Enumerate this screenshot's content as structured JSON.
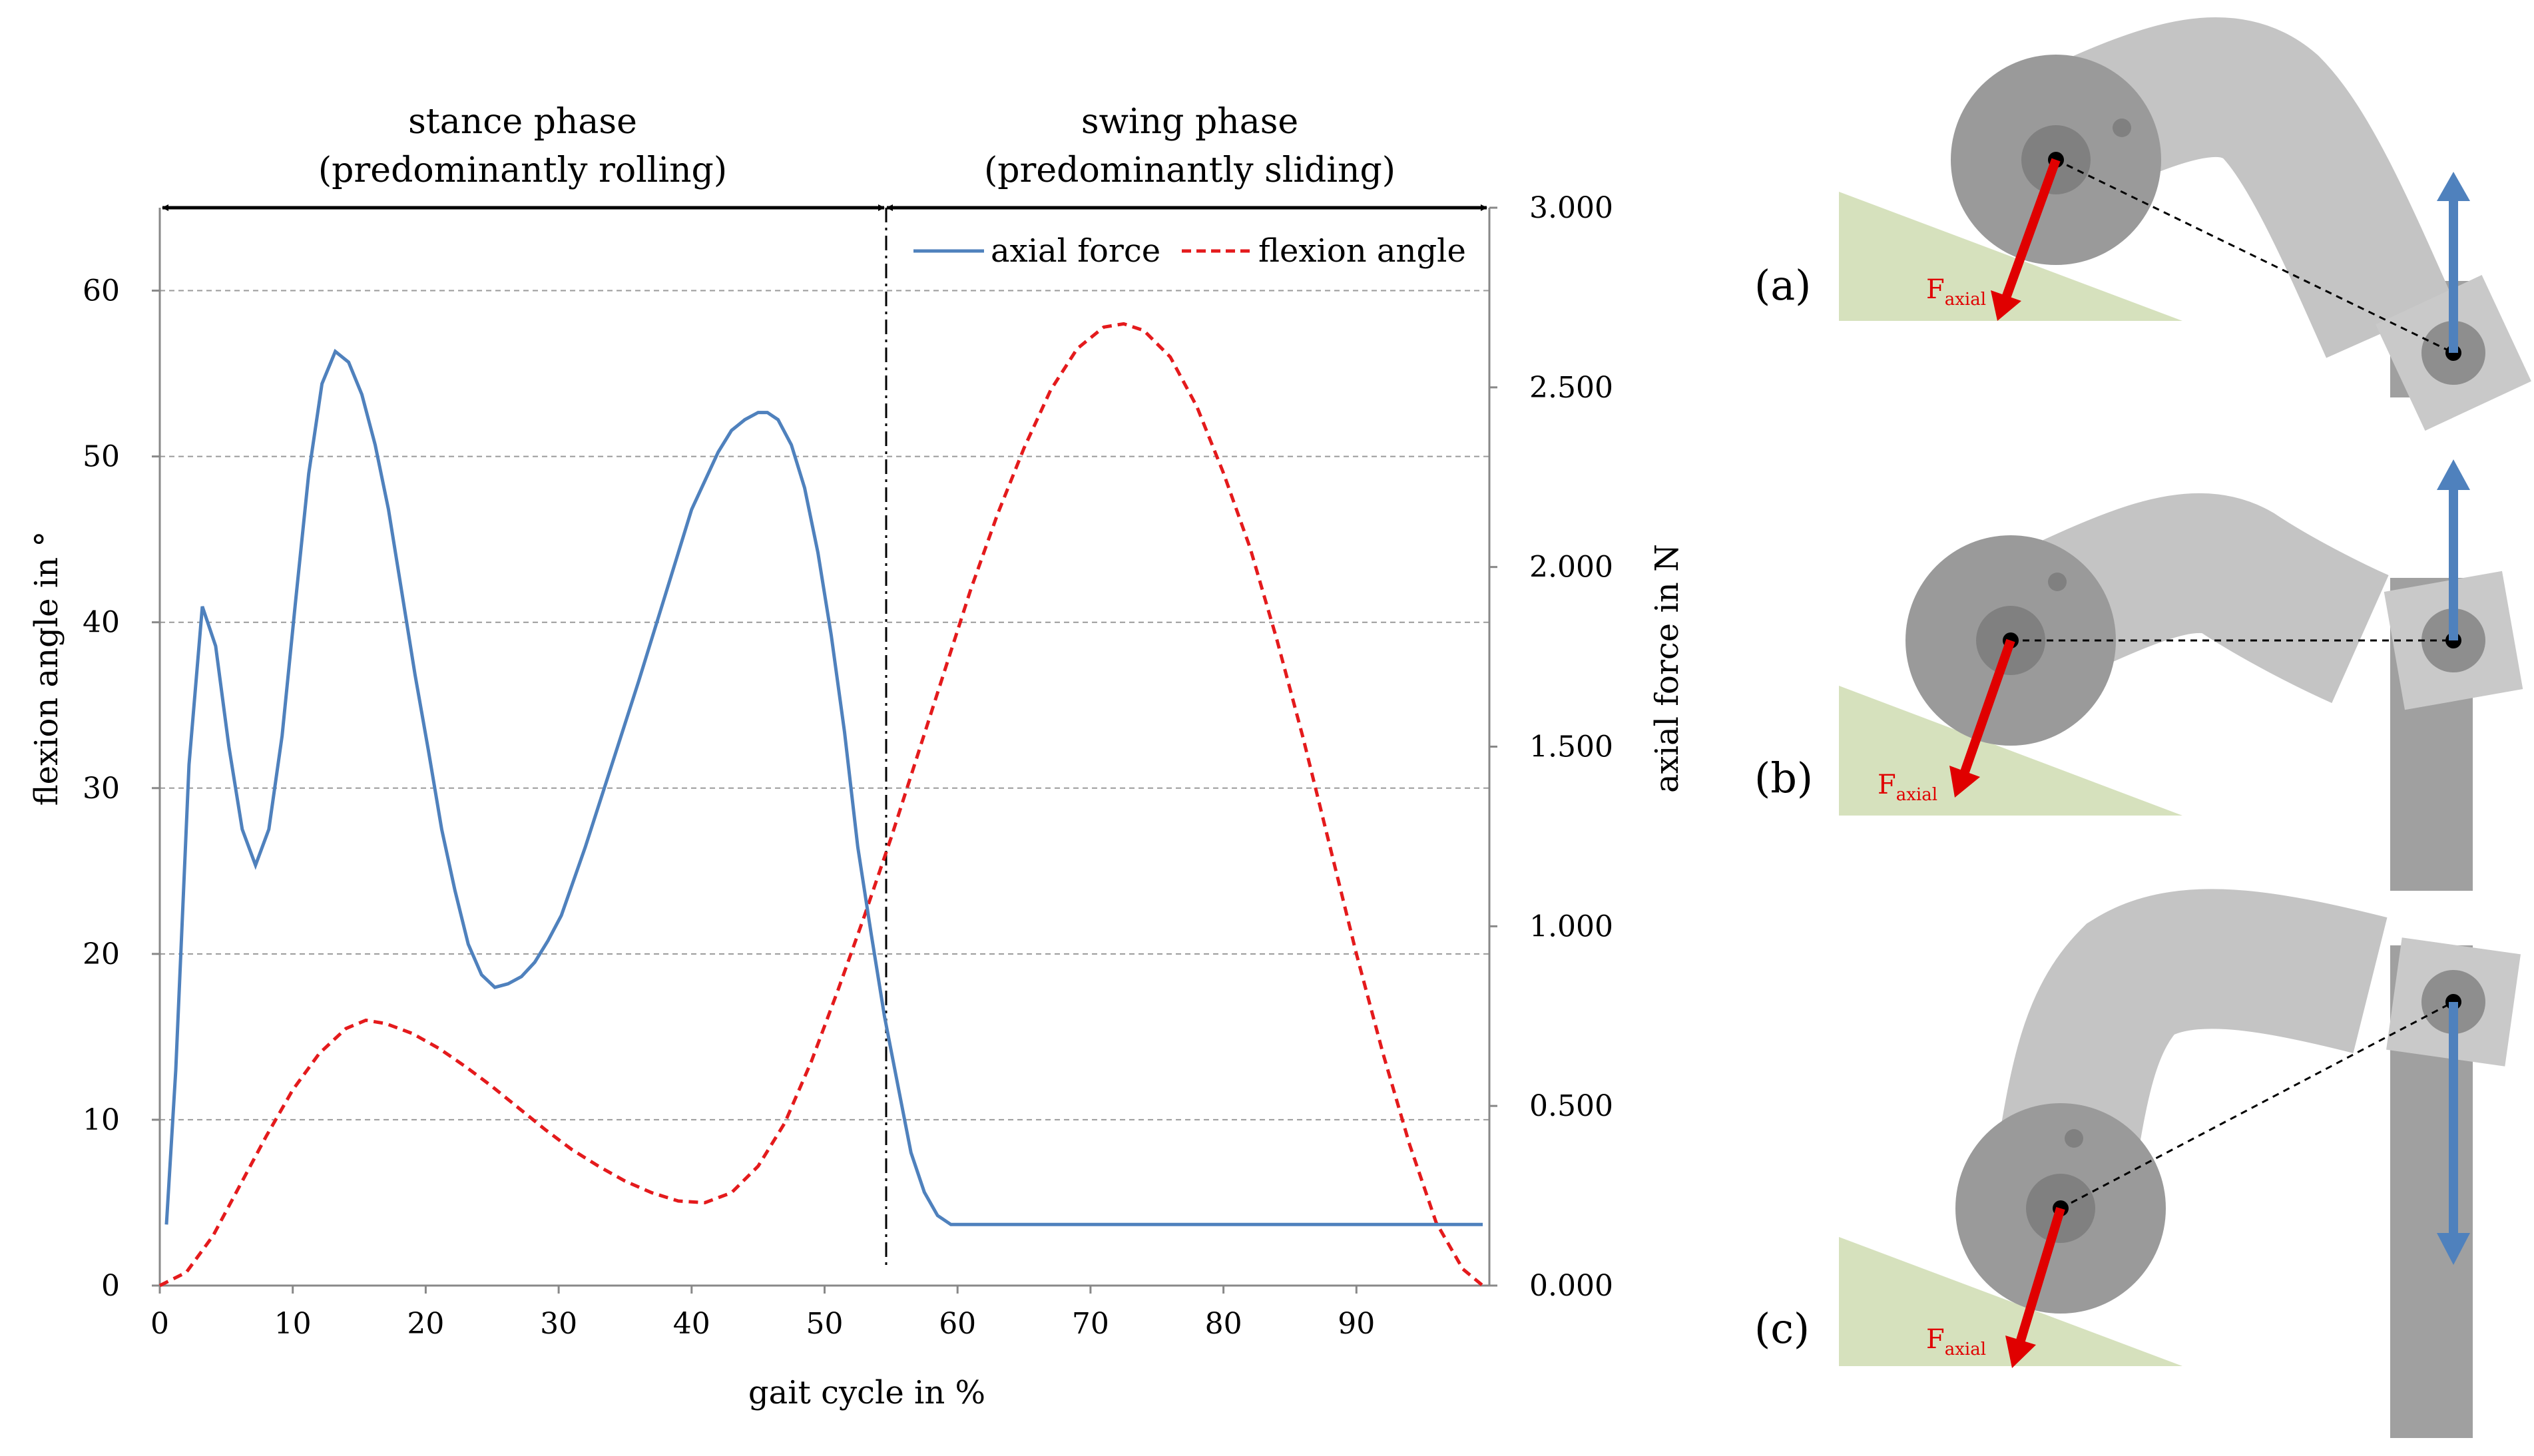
{
  "chart_data": {
    "type": "line",
    "title": "",
    "xlabel": "gait cycle in %",
    "ylabel": "flexion angle in °",
    "y2label": "axial force in N",
    "xlim": [
      0,
      100
    ],
    "ylim": [
      0,
      65
    ],
    "y2lim": [
      0,
      3000
    ],
    "x_ticks": [
      "0",
      "10",
      "20",
      "30",
      "40",
      "50",
      "60",
      "70",
      "80",
      "90"
    ],
    "y_ticks": [
      "0",
      "10",
      "20",
      "30",
      "40",
      "50",
      "60"
    ],
    "y2_ticks": [
      "0.000",
      "0.500",
      "1.000",
      "1.500",
      "2.000",
      "2.500",
      "3.000"
    ],
    "grid": "horizontal dashed",
    "legend_position": "top-right",
    "series": [
      {
        "name": "axial force",
        "axis": "right",
        "color": "#4f81bd",
        "style": "solid",
        "x": [
          0.5,
          1.2,
          2.2,
          3.2,
          4.2,
          5.2,
          6.2,
          7.2,
          8.2,
          9.2,
          10.2,
          11.2,
          12.2,
          13.2,
          14.2,
          15.2,
          16.2,
          17.2,
          18.2,
          19.2,
          20.2,
          21.2,
          22.2,
          23.2,
          24.2,
          25.2,
          26.2,
          27.2,
          28.2,
          29.2,
          30.2,
          32,
          34,
          36,
          38,
          40,
          41,
          42,
          43,
          44,
          45,
          45.7,
          46.5,
          47.5,
          48.5,
          49.5,
          50.5,
          51.5,
          52.5,
          53.5,
          54.5,
          55.5,
          56.5,
          57.5,
          58.5,
          59.5,
          60.5,
          65,
          70,
          75,
          80,
          85,
          90,
          95,
          99.5
        ],
        "y": [
          170,
          600,
          1450,
          1890,
          1780,
          1500,
          1270,
          1170,
          1270,
          1530,
          1900,
          2260,
          2510,
          2600,
          2570,
          2480,
          2340,
          2160,
          1930,
          1700,
          1490,
          1270,
          1100,
          950,
          865,
          830,
          840,
          860,
          900,
          960,
          1030,
          1220,
          1450,
          1680,
          1920,
          2160,
          2240,
          2320,
          2380,
          2410,
          2430,
          2430,
          2410,
          2340,
          2220,
          2040,
          1810,
          1540,
          1220,
          980,
          750,
          560,
          370,
          260,
          195,
          170,
          170,
          170,
          170,
          170,
          170,
          170,
          170,
          170,
          170
        ]
      },
      {
        "name": "flexion angle",
        "axis": "left",
        "color": "#e41a1c",
        "style": "dashed",
        "x": [
          0,
          2,
          4,
          6,
          8,
          10,
          12,
          14,
          15.5,
          17,
          19,
          21,
          23,
          25,
          27,
          29,
          31,
          33,
          35,
          37,
          39,
          41,
          43,
          45,
          47,
          49,
          51,
          53,
          55,
          57,
          59,
          61,
          63,
          65,
          67,
          69,
          71,
          72.5,
          74,
          76,
          78,
          80,
          82,
          84,
          86,
          88,
          90,
          92,
          94,
          96,
          98,
          99.5
        ],
        "y": [
          0,
          0.8,
          3,
          6,
          9,
          11.8,
          14,
          15.5,
          16,
          15.8,
          15.2,
          14.3,
          13.2,
          12,
          10.7,
          9.4,
          8.2,
          7.2,
          6.3,
          5.6,
          5.1,
          5,
          5.6,
          7.2,
          9.8,
          13.5,
          17.8,
          22.3,
          27,
          32,
          37,
          42,
          46.5,
          50.5,
          54,
          56.5,
          57.8,
          58,
          57.6,
          56,
          53,
          49,
          44.5,
          39,
          33,
          26.5,
          20,
          14,
          8.5,
          3.8,
          1,
          0
        ]
      }
    ],
    "annotations": [
      {
        "text": "stance phase",
        "position": "top-left"
      },
      {
        "text": "(predominantly rolling)",
        "position": "top-left"
      },
      {
        "text": "swing phase",
        "position": "top-right"
      },
      {
        "text": "(predominantly sliding)",
        "position": "top-right"
      },
      {
        "text": "stance/swing boundary",
        "x": 54.5
      }
    ]
  },
  "diagram": {
    "panels": [
      {
        "label": "(a)",
        "force_label": "F",
        "force_subscript": "axial"
      },
      {
        "label": "(b)",
        "force_label": "F",
        "force_subscript": "axial"
      },
      {
        "label": "(c)",
        "force_label": "F",
        "force_subscript": "axial"
      }
    ]
  }
}
